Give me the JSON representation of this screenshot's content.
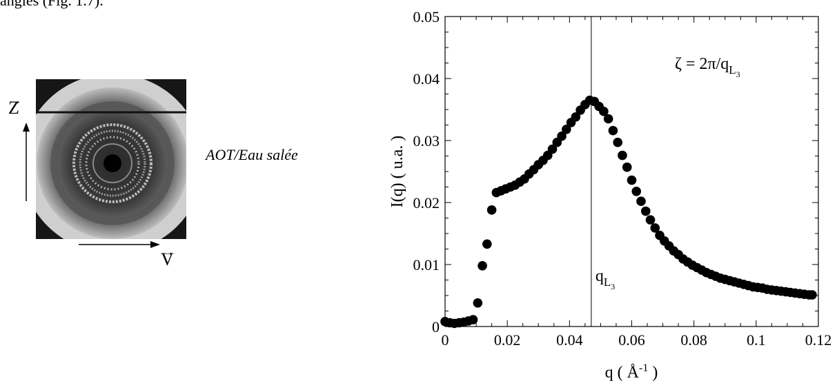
{
  "page_text": {
    "cut_off_top_line": "angles (Fig. 1.7).",
    "sample_caption": "AOT/Eau salée"
  },
  "scattering_image": {
    "vertical_axis_label": "Z",
    "horizontal_axis_label": "V"
  },
  "chart_data": {
    "type": "scatter",
    "xlabel": "q ( Å",
    "xlabel_sup": "-1",
    "xlabel_end": " )",
    "ylabel": "I(q) ( u.a. )",
    "xlim": [
      0,
      0.12
    ],
    "ylim": [
      0,
      0.05
    ],
    "x_ticks": [
      0,
      0.02,
      0.04,
      0.06,
      0.08,
      0.1,
      0.12
    ],
    "x_tick_labels": [
      "0",
      "0.02",
      "0.04",
      "0.06",
      "0.08",
      "0.1",
      "0.12"
    ],
    "y_ticks": [
      0,
      0.01,
      0.02,
      0.03,
      0.04,
      0.05
    ],
    "y_tick_labels": [
      "0",
      "0.01",
      "0.02",
      "0.03",
      "0.04",
      "0.05"
    ],
    "grid": false,
    "vertical_marker": {
      "x": 0.047,
      "label": "q",
      "label_sub": "L",
      "label_subsub": "3"
    },
    "annotation": {
      "text": "ζ = 2π/q",
      "sub": "L",
      "subsub": "3"
    },
    "points": [
      [
        0.0,
        0.0008
      ],
      [
        0.0015,
        0.0006
      ],
      [
        0.003,
        0.0005
      ],
      [
        0.0045,
        0.0006
      ],
      [
        0.006,
        0.0007
      ],
      [
        0.0075,
        0.0009
      ],
      [
        0.009,
        0.0011
      ],
      [
        0.0105,
        0.0038
      ],
      [
        0.012,
        0.0098
      ],
      [
        0.0135,
        0.0133
      ],
      [
        0.015,
        0.0188
      ],
      [
        0.0165,
        0.0216
      ],
      [
        0.018,
        0.0219
      ],
      [
        0.0195,
        0.0222
      ],
      [
        0.021,
        0.0225
      ],
      [
        0.0225,
        0.0228
      ],
      [
        0.024,
        0.0233
      ],
      [
        0.0255,
        0.0238
      ],
      [
        0.027,
        0.0246
      ],
      [
        0.0285,
        0.0253
      ],
      [
        0.03,
        0.0261
      ],
      [
        0.0315,
        0.0268
      ],
      [
        0.033,
        0.0276
      ],
      [
        0.0345,
        0.0286
      ],
      [
        0.036,
        0.0297
      ],
      [
        0.0375,
        0.0307
      ],
      [
        0.039,
        0.0318
      ],
      [
        0.0405,
        0.0329
      ],
      [
        0.042,
        0.0338
      ],
      [
        0.0435,
        0.0349
      ],
      [
        0.045,
        0.0358
      ],
      [
        0.0465,
        0.0365
      ],
      [
        0.048,
        0.0363
      ],
      [
        0.0495,
        0.0355
      ],
      [
        0.051,
        0.0347
      ],
      [
        0.0525,
        0.0335
      ],
      [
        0.054,
        0.0316
      ],
      [
        0.0555,
        0.0297
      ],
      [
        0.057,
        0.0276
      ],
      [
        0.0585,
        0.0257
      ],
      [
        0.06,
        0.0236
      ],
      [
        0.0615,
        0.0218
      ],
      [
        0.063,
        0.0202
      ],
      [
        0.0645,
        0.0186
      ],
      [
        0.066,
        0.0172
      ],
      [
        0.0675,
        0.0159
      ],
      [
        0.069,
        0.0147
      ],
      [
        0.0705,
        0.0138
      ],
      [
        0.072,
        0.013
      ],
      [
        0.0735,
        0.0122
      ],
      [
        0.075,
        0.0116
      ],
      [
        0.0765,
        0.0109
      ],
      [
        0.078,
        0.0104
      ],
      [
        0.0795,
        0.0099
      ],
      [
        0.081,
        0.0095
      ],
      [
        0.0825,
        0.0091
      ],
      [
        0.084,
        0.0087
      ],
      [
        0.0855,
        0.0084
      ],
      [
        0.087,
        0.0081
      ],
      [
        0.0885,
        0.0078
      ],
      [
        0.09,
        0.0076
      ],
      [
        0.0915,
        0.0074
      ],
      [
        0.093,
        0.0072
      ],
      [
        0.0945,
        0.007
      ],
      [
        0.096,
        0.0068
      ],
      [
        0.0975,
        0.0066
      ],
      [
        0.099,
        0.0064
      ],
      [
        0.1005,
        0.0063
      ],
      [
        0.102,
        0.0062
      ],
      [
        0.1035,
        0.006
      ],
      [
        0.105,
        0.0059
      ],
      [
        0.1065,
        0.0058
      ],
      [
        0.108,
        0.0057
      ],
      [
        0.1095,
        0.0056
      ],
      [
        0.111,
        0.0055
      ],
      [
        0.1125,
        0.0054
      ],
      [
        0.114,
        0.0053
      ],
      [
        0.1155,
        0.0052
      ],
      [
        0.117,
        0.0051
      ],
      [
        0.118,
        0.0051
      ]
    ]
  }
}
